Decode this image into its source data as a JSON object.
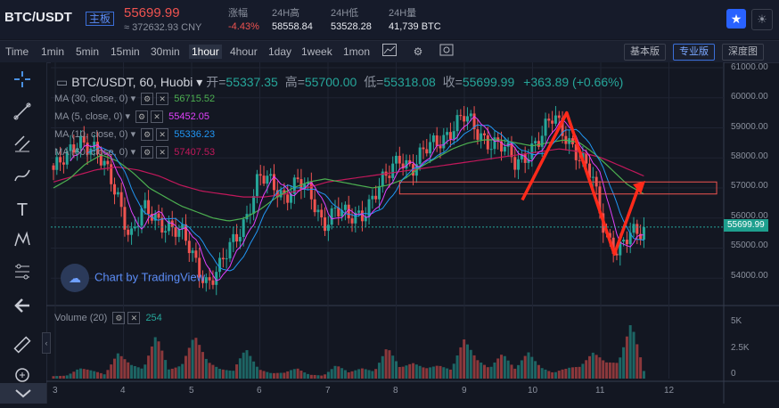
{
  "header": {
    "pair": "BTC/USDT",
    "tag": "主板",
    "last_price": "55699.99",
    "cny_price": "≈ 372632.93 CNY",
    "stats": [
      {
        "label": "涨幅",
        "value": "-4.43%"
      },
      {
        "label": "24H高",
        "value": "58558.84"
      },
      {
        "label": "24H低",
        "value": "53528.28"
      },
      {
        "label": "24H量",
        "value": "41,739 BTC"
      }
    ],
    "star_icon": "★",
    "theme_icon": "☀"
  },
  "timeframes": [
    "Time",
    "1min",
    "5min",
    "15min",
    "30min",
    "1hour",
    "4hour",
    "1day",
    "1week",
    "1mon"
  ],
  "active_timeframe": "1hour",
  "versions": {
    "basic": "基本版",
    "pro": "专业版",
    "depth": "深度图"
  },
  "legend": {
    "title": "BTC/USDT, 60, Huobi",
    "open_label": "开=",
    "open": "55337.35",
    "high_label": "高=",
    "high": "55700.00",
    "low_label": "低=",
    "low": "55318.08",
    "close_label": "收=",
    "close": "55699.99",
    "change": "+363.89 (+0.66%)"
  },
  "indicators": [
    {
      "label": "MA (30, close, 0)",
      "value": "56715.52",
      "color": "#4caf50"
    },
    {
      "label": "MA (5, close, 0)",
      "value": "55452.05",
      "color": "#e040fb"
    },
    {
      "label": "MA (10, close, 0)",
      "value": "55336.23",
      "color": "#2196f3"
    },
    {
      "label": "MA (60, close, 0)",
      "value": "57407.53",
      "color": "#c2185b"
    }
  ],
  "volume_legend": {
    "label": "Volume (20)",
    "value": "254"
  },
  "watermark": "Chart by TradingView",
  "y_axis": [
    "61000.00",
    "60000.00",
    "59000.00",
    "58000.00",
    "57000.00",
    "56000.00",
    "55000.00",
    "54000.00"
  ],
  "vol_axis": [
    "5K",
    "2.5K",
    "0"
  ],
  "x_axis": [
    "3",
    "4",
    "5",
    "6",
    "7",
    "8",
    "9",
    "10",
    "11",
    "12"
  ],
  "last_price_tag": "55699.99",
  "colors": {
    "up": "#26a69a",
    "down": "#ef5350",
    "accent": "#2962ff"
  },
  "chart_data": {
    "type": "candlestick",
    "x_label_values": [
      3,
      4,
      5,
      6,
      7,
      8,
      9,
      10,
      11,
      12
    ],
    "ylim": [
      53000,
      61000
    ],
    "close_path": [
      57600,
      57900,
      58700,
      58400,
      57600,
      56800,
      55400,
      56200,
      56000,
      55800,
      55400,
      54600,
      53900,
      54300,
      55200,
      56100,
      57300,
      57100,
      56800,
      57200,
      56700,
      55900,
      56300,
      55900,
      56200,
      56800,
      57300,
      58100,
      57700,
      58200,
      58600,
      59000,
      59300,
      58900,
      58600,
      58300,
      57800,
      58300,
      58600,
      59400,
      58800,
      57900,
      57300,
      55600,
      54800,
      55400,
      55700
    ],
    "volume_path": [
      600,
      500,
      1400,
      900,
      400,
      2200,
      1100,
      700,
      3100,
      600,
      900,
      3000,
      1200,
      700,
      600,
      2600,
      900,
      600,
      800,
      1800,
      900,
      500,
      1800,
      700,
      1000,
      600,
      2500,
      800,
      1100,
      700,
      900,
      600,
      2800,
      1400,
      800,
      2200,
      900,
      3000,
      1500,
      1000,
      2500,
      2000,
      3500,
      1800,
      1500,
      4800,
      600
    ],
    "ma30_path": [
      57000,
      57300,
      57800,
      58100,
      57900,
      57500,
      57000,
      56700,
      56400,
      56200,
      56000,
      55900,
      56000,
      56300,
      56700,
      57000,
      57200,
      57300,
      57200,
      57100,
      57000,
      57100,
      57300,
      57700,
      58000,
      58300,
      58500,
      58600,
      58600,
      58500,
      58400,
      58500,
      58600,
      58500,
      58100,
      57600,
      57100,
      56800
    ],
    "ma60_path": [
      57200,
      57400,
      57600,
      57700,
      57600,
      57400,
      57100,
      56900,
      56800,
      56700,
      56700,
      56800,
      57000,
      57200,
      57300,
      57400,
      57500,
      57600,
      57700,
      57800,
      57900,
      58000,
      58100,
      58200,
      58300,
      58200,
      58000,
      57700,
      57400
    ],
    "drawings": {
      "rectangle_price_range": [
        56800,
        57200
      ],
      "zigzag": [
        [
          9.85,
          56600
        ],
        [
          10.5,
          59500
        ],
        [
          11.2,
          54800
        ],
        [
          11.55,
          57000
        ]
      ]
    }
  }
}
